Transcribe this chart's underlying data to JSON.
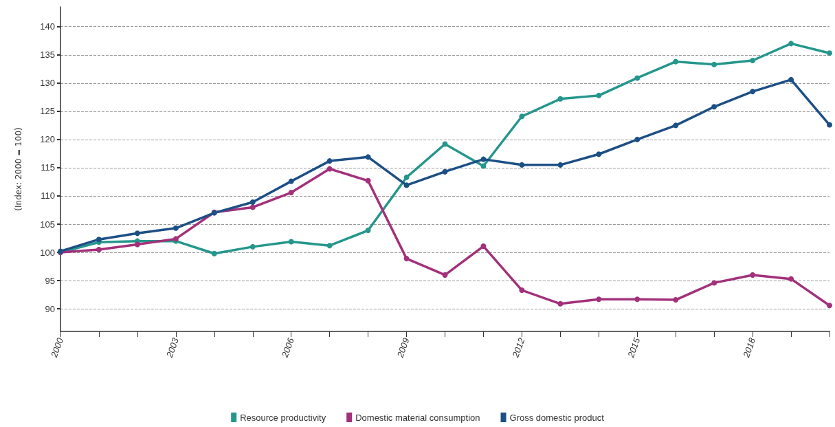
{
  "chart_data": {
    "type": "line",
    "ylabel": "(Index: 2000 = 100)",
    "x": [
      2000,
      2001,
      2002,
      2003,
      2004,
      2005,
      2006,
      2007,
      2008,
      2009,
      2010,
      2011,
      2012,
      2013,
      2014,
      2015,
      2016,
      2017,
      2018,
      2019,
      2020
    ],
    "series": [
      {
        "name": "Resource productivity",
        "color": "#25968c",
        "values": [
          100,
          101.8,
          102,
          102,
          99.8,
          101,
          101.9,
          101.2,
          103.9,
          113.3,
          119.2,
          115.3,
          124.1,
          127.2,
          127.8,
          130.9,
          133.8,
          133.3,
          134,
          137,
          135.3
        ]
      },
      {
        "name": "Domestic material consumption",
        "color": "#a3307a",
        "values": [
          100,
          100.5,
          101.4,
          102.4,
          107.1,
          108,
          110.6,
          114.8,
          112.7,
          98.9,
          96,
          101.1,
          93.3,
          90.9,
          91.7,
          91.7,
          91.6,
          94.6,
          96,
          95.3,
          90.6
        ]
      },
      {
        "name": "Gross domestic product",
        "color": "#1c4f86",
        "values": [
          100.2,
          102.3,
          103.4,
          104.3,
          107,
          108.9,
          112.6,
          116.2,
          116.9,
          111.9,
          114.3,
          116.5,
          115.5,
          115.5,
          117.4,
          120,
          122.5,
          125.8,
          128.5,
          130.6,
          122.6
        ]
      }
    ],
    "xlim": [
      2000,
      2020
    ],
    "xticks": [
      2000,
      {
        "value": 2001,
        "label": null
      },
      {
        "value": 2002,
        "label": null
      },
      2003,
      {
        "value": 2004,
        "label": null
      },
      {
        "value": 2005,
        "label": null
      },
      2006,
      {
        "value": 2007,
        "label": null
      },
      {
        "value": 2008,
        "label": null
      },
      2009,
      {
        "value": 2010,
        "label": null
      },
      {
        "value": 2011,
        "label": null
      },
      2012,
      {
        "value": 2013,
        "label": null
      },
      {
        "value": 2014,
        "label": null
      },
      2015,
      {
        "value": 2016,
        "label": null
      },
      {
        "value": 2017,
        "label": null
      },
      2018,
      {
        "value": 2019,
        "label": null
      },
      {
        "value": 2020,
        "label": null
      }
    ],
    "ylim": [
      86,
      143.5
    ],
    "yticks": [
      90,
      95,
      100,
      105,
      110,
      115,
      120,
      125,
      130,
      135,
      140
    ],
    "grid": "y",
    "legend": "bottom",
    "marker": "circle",
    "line_style": "solid"
  }
}
